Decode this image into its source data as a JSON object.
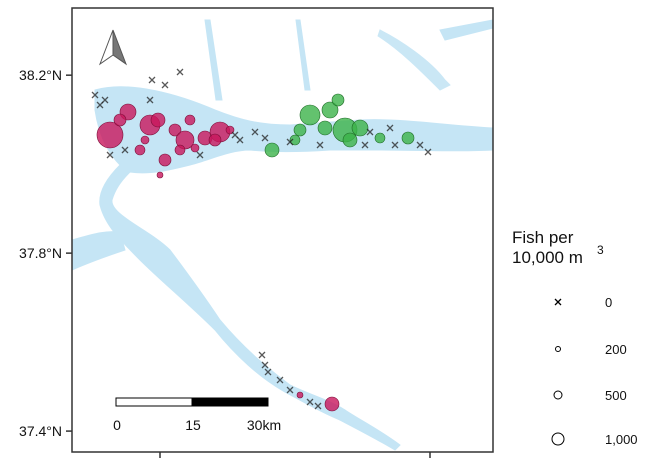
{
  "map": {
    "lat_ticks": [
      {
        "value": 38.2,
        "label": "38.2°N"
      },
      {
        "value": 37.8,
        "label": "37.8°N"
      },
      {
        "value": 37.4,
        "label": "37.4°N"
      }
    ],
    "lat_range": [
      37.353,
      38.351
    ],
    "scale_bar": {
      "labels": [
        "0",
        "15",
        "30km"
      ]
    },
    "legend": {
      "title_lines": [
        "Fish per",
        "10,000 m"
      ],
      "title_superscript": "3",
      "entries": [
        "0",
        "200",
        "500",
        "1,000"
      ]
    }
  }
}
